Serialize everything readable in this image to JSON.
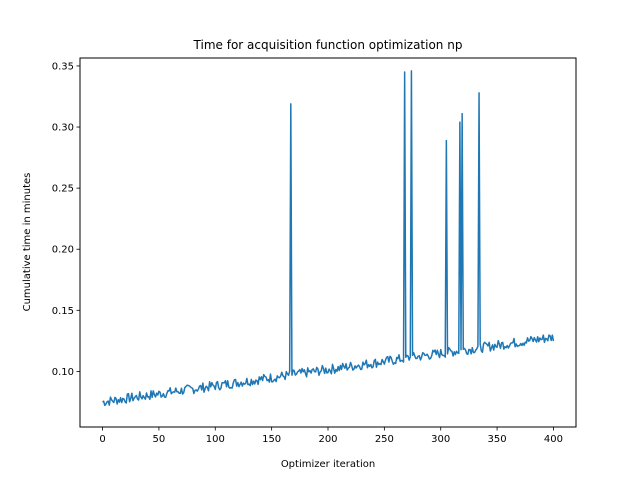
{
  "chart_data": {
    "type": "line",
    "title": "Time for acquisition function optimization np",
    "xlabel": "Optimizer iteration",
    "ylabel": "Cumulative time in minutes",
    "xlim": [
      -20,
      420
    ],
    "ylim": [
      0.0545,
      0.3565
    ],
    "xticks": [
      0,
      50,
      100,
      150,
      200,
      250,
      300,
      350,
      400
    ],
    "yticks": [
      0.1,
      0.15,
      0.2,
      0.25,
      0.3,
      0.35
    ],
    "grid": false,
    "legend": "none",
    "series": [
      {
        "name": "",
        "color": "#1f77b4",
        "baseline": {
          "x": [
            0,
            400
          ],
          "y": [
            0.075,
            0.128
          ],
          "noise_amplitude": 0.004
        },
        "spikes": [
          {
            "x": 167,
            "y": 0.319
          },
          {
            "x": 268,
            "y": 0.345
          },
          {
            "x": 274,
            "y": 0.346
          },
          {
            "x": 305,
            "y": 0.289
          },
          {
            "x": 317,
            "y": 0.304
          },
          {
            "x": 319,
            "y": 0.311
          },
          {
            "x": 334,
            "y": 0.328
          }
        ]
      }
    ]
  }
}
